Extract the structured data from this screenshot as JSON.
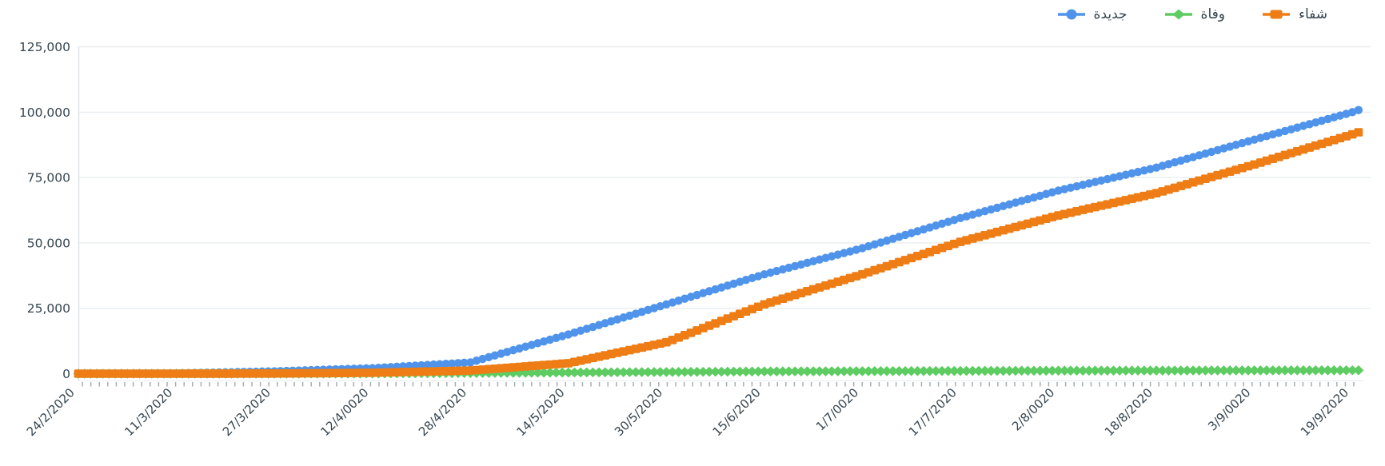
{
  "colors": {
    "background": "#ffffff",
    "grid": "#e9edef",
    "axis_line": "#e0e5e7",
    "tick_mark": "#8a9599",
    "axis_text": "#36454f",
    "series_new_cases": "#4f94ea",
    "series_deaths": "#5ecc62",
    "series_recovered": "#ee7d16"
  },
  "legend": {
    "position": "top-right",
    "items": [
      {
        "key": "new-cases",
        "label": "جديدة",
        "color": "#4f94ea",
        "marker": "circle"
      },
      {
        "key": "deaths",
        "label": "وفاة",
        "color": "#5ecc62",
        "marker": "diamond"
      },
      {
        "key": "recovered",
        "label": "شفاء",
        "color": "#ee7d16",
        "marker": "square"
      }
    ]
  },
  "chart_data": {
    "type": "line",
    "title": "",
    "xlabel": "",
    "ylabel": "",
    "ylim": [
      0,
      125000
    ],
    "grid": true,
    "legend_position": "top-right",
    "y_tick_labels": [
      "0",
      "25,000",
      "50,000",
      "75,000",
      "100,000",
      "125,000"
    ],
    "y_tick_values": [
      0,
      25000,
      50000,
      75000,
      100000,
      125000
    ],
    "categories": [
      "24/2/2020",
      "11/3/2020",
      "27/3/2020",
      "12/4/0020",
      "28/4/2020",
      "14/5/2020",
      "30/5/2020",
      "15/6/2020",
      "1/7/0020",
      "17/7/2020",
      "2/8/0020",
      "18/8/2020",
      "3/9/0020",
      "19/9/2020"
    ],
    "x_tick_interval_days": 16,
    "total_days": 209,
    "series": [
      {
        "key": "new-cases",
        "name": "جديدة",
        "color": "#4f94ea",
        "marker": "circle",
        "control_days": [
          0,
          16,
          32,
          48,
          64,
          80,
          96,
          112,
          128,
          144,
          160,
          176,
          192,
          208,
          209
        ],
        "control_values": [
          0,
          120,
          900,
          2100,
          4300,
          15000,
          26500,
          38000,
          48000,
          59500,
          70000,
          78800,
          89500,
          100000,
          100800
        ],
        "values_at_ticks": [
          0,
          120,
          900,
          2100,
          4300,
          15000,
          26500,
          38000,
          48000,
          59500,
          70000,
          78800,
          89500,
          100000
        ]
      },
      {
        "key": "deaths",
        "name": "وفاة",
        "color": "#5ecc62",
        "marker": "diamond",
        "control_days": [
          0,
          16,
          32,
          48,
          64,
          80,
          96,
          112,
          128,
          144,
          160,
          176,
          192,
          208,
          209
        ],
        "control_values": [
          0,
          0,
          15,
          80,
          250,
          450,
          650,
          850,
          950,
          1050,
          1150,
          1200,
          1250,
          1300,
          1300
        ],
        "values_at_ticks": [
          0,
          0,
          15,
          80,
          250,
          450,
          650,
          850,
          950,
          1050,
          1150,
          1200,
          1250,
          1300
        ]
      },
      {
        "key": "recovered",
        "name": "شفاء",
        "color": "#ee7d16",
        "marker": "square",
        "control_days": [
          0,
          16,
          32,
          48,
          64,
          80,
          96,
          112,
          128,
          144,
          160,
          176,
          192,
          208,
          209
        ],
        "control_values": [
          0,
          0,
          60,
          350,
          1200,
          4000,
          12000,
          26500,
          38000,
          50400,
          60500,
          69000,
          80000,
          91500,
          92300
        ],
        "values_at_ticks": [
          0,
          0,
          60,
          350,
          1200,
          4000,
          12000,
          26500,
          38000,
          50400,
          60500,
          69000,
          80000,
          91500
        ]
      }
    ]
  },
  "layout_hints": {
    "draw_order": [
      "new-cases",
      "deaths",
      "recovered"
    ],
    "x_labels_rotation_deg": -45
  }
}
